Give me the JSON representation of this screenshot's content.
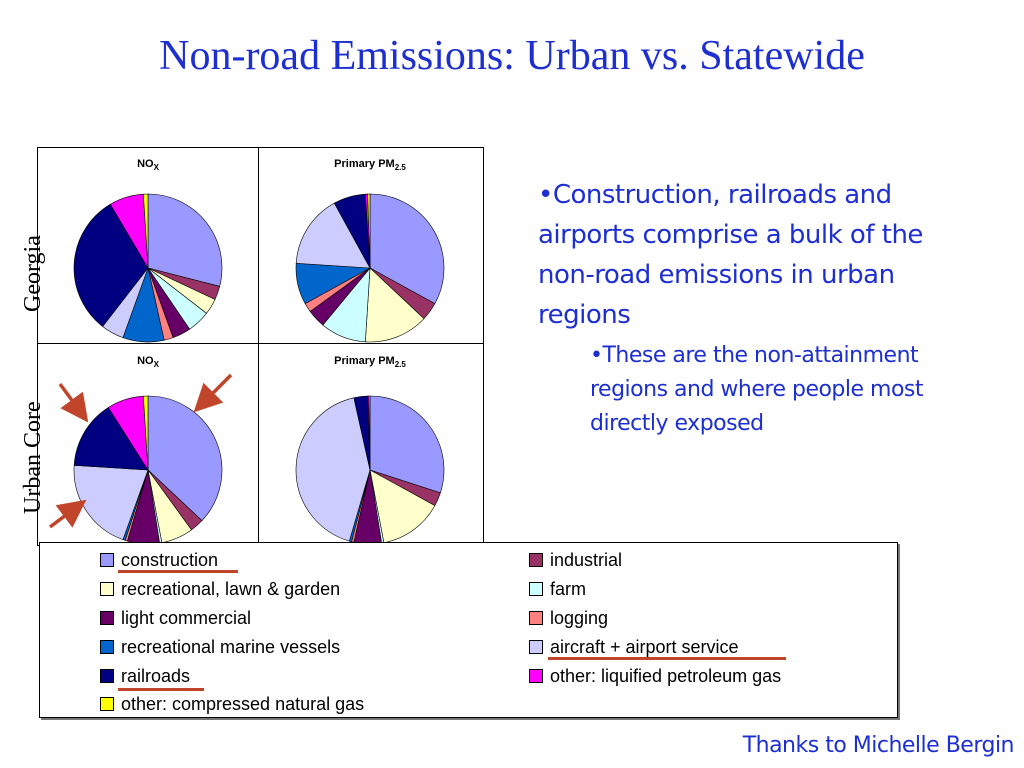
{
  "title": "Non-road Emissions: Urban vs. Statewide",
  "row_labels": {
    "georgia": "Georgia",
    "urban_core": "Urban Core"
  },
  "bullets": {
    "main": "•Construction, railroads and airports comprise a bulk of the non-road emissions in urban regions",
    "sub": "•These are the non-attainment regions and where people most directly exposed"
  },
  "credit": "Thanks to Michelle Bergin",
  "colors": {
    "construction": "#9999ff",
    "industrial": "#993366",
    "recreational": "#ffffcc",
    "farm": "#ccffff",
    "light_commercial": "#660066",
    "logging": "#ff8080",
    "marine": "#0066cc",
    "aircraft": "#ccccff",
    "railroads": "#000080",
    "lpg": "#ff00ff",
    "cng": "#ffff00",
    "annotation": "#c0452b"
  },
  "chart_data": [
    {
      "type": "pie",
      "title_main": "NO",
      "title_sub": "X",
      "row": "Georgia",
      "slices": [
        {
          "category": "construction",
          "value": 29
        },
        {
          "category": "industrial",
          "value": 3
        },
        {
          "category": "recreational, lawn & garden",
          "value": 3.5
        },
        {
          "category": "farm",
          "value": 5
        },
        {
          "category": "light commercial",
          "value": 4
        },
        {
          "category": "logging",
          "value": 2
        },
        {
          "category": "recreational marine vessels",
          "value": 9
        },
        {
          "category": "aircraft + airport service",
          "value": 5
        },
        {
          "category": "railroads",
          "value": 31
        },
        {
          "category": "other: liquified petroleum gas",
          "value": 7.5
        },
        {
          "category": "other: compressed natural gas",
          "value": 1
        }
      ]
    },
    {
      "type": "pie",
      "title_main": "Primary PM",
      "title_sub": "2.5",
      "row": "Georgia",
      "slices": [
        {
          "category": "construction",
          "value": 33
        },
        {
          "category": "industrial",
          "value": 4
        },
        {
          "category": "recreational, lawn & garden",
          "value": 14
        },
        {
          "category": "farm",
          "value": 10
        },
        {
          "category": "light commercial",
          "value": 4
        },
        {
          "category": "logging",
          "value": 2
        },
        {
          "category": "recreational marine vessels",
          "value": 9
        },
        {
          "category": "aircraft + airport service",
          "value": 16
        },
        {
          "category": "railroads",
          "value": 7
        },
        {
          "category": "other: liquified petroleum gas",
          "value": 0.5
        },
        {
          "category": "other: compressed natural gas",
          "value": 0.5
        }
      ]
    },
    {
      "type": "pie",
      "title_main": "NO",
      "title_sub": "X",
      "row": "Urban Core",
      "slices": [
        {
          "category": "construction",
          "value": 37
        },
        {
          "category": "industrial",
          "value": 3
        },
        {
          "category": "recreational, lawn & garden",
          "value": 7
        },
        {
          "category": "farm",
          "value": 0.5
        },
        {
          "category": "light commercial",
          "value": 7
        },
        {
          "category": "logging",
          "value": 0.5
        },
        {
          "category": "recreational marine vessels",
          "value": 0.5
        },
        {
          "category": "aircraft + airport service",
          "value": 20.5
        },
        {
          "category": "railroads",
          "value": 15
        },
        {
          "category": "other: liquified petroleum gas",
          "value": 8
        },
        {
          "category": "other: compressed natural gas",
          "value": 1
        }
      ]
    },
    {
      "type": "pie",
      "title_main": "Primary PM",
      "title_sub": "2.5",
      "row": "Urban Core",
      "slices": [
        {
          "category": "construction",
          "value": 30
        },
        {
          "category": "industrial",
          "value": 3
        },
        {
          "category": "recreational, lawn & garden",
          "value": 14
        },
        {
          "category": "farm",
          "value": 0.5
        },
        {
          "category": "light commercial",
          "value": 6
        },
        {
          "category": "logging",
          "value": 0.5
        },
        {
          "category": "recreational marine vessels",
          "value": 0.5
        },
        {
          "category": "aircraft + airport service",
          "value": 42
        },
        {
          "category": "railroads",
          "value": 3
        },
        {
          "category": "other: liquified petroleum gas",
          "value": 0.25
        },
        {
          "category": "other: compressed natural gas",
          "value": 0.25
        }
      ]
    }
  ],
  "legend": [
    {
      "label": "construction",
      "color": "#9999ff",
      "underlined": true
    },
    {
      "label": "industrial",
      "color": "#993366",
      "underlined": false
    },
    {
      "label": "recreational, lawn & garden",
      "color": "#ffffcc",
      "underlined": false
    },
    {
      "label": "farm",
      "color": "#ccffff",
      "underlined": false
    },
    {
      "label": "light commercial",
      "color": "#660066",
      "underlined": false
    },
    {
      "label": "logging",
      "color": "#ff8080",
      "underlined": false
    },
    {
      "label": "recreational marine vessels",
      "color": "#0066cc",
      "underlined": false
    },
    {
      "label": "aircraft + airport service",
      "color": "#ccccff",
      "underlined": true
    },
    {
      "label": "railroads",
      "color": "#000080",
      "underlined": true
    },
    {
      "label": "other: liquified petroleum gas",
      "color": "#ff00ff",
      "underlined": false
    },
    {
      "label": "other: compressed natural gas",
      "color": "#ffff00",
      "underlined": false
    }
  ]
}
